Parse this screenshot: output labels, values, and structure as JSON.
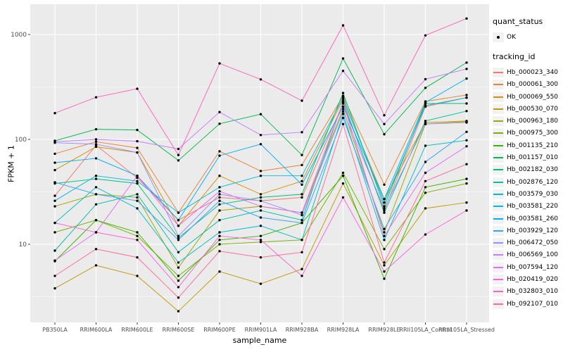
{
  "figure": {
    "background": "#FFFFFF",
    "panel_background": "#EBEBEB",
    "grid_color": "#FFFFFF",
    "tick_color": "#333333",
    "tick_text_color": "#4D4D4D",
    "point_color": "#000000"
  },
  "legend": {
    "quant_status_title": "quant_status",
    "quant_status_items": [
      {
        "label": "OK",
        "marker": "point"
      }
    ],
    "tracking_id_title": "tracking_id"
  },
  "chart_data": {
    "type": "line",
    "title": "",
    "xlabel": "sample_name",
    "ylabel": "FPKM + 1",
    "y_scale": "log10",
    "y_ticks": [
      10,
      100,
      1000
    ],
    "y_minor_ticks": [
      3.162,
      31.62,
      316.2
    ],
    "ylim": [
      1.8,
      1830
    ],
    "grid": true,
    "legend_position": "right",
    "marker": "black-point",
    "categories": [
      "PB350LA",
      "RRIM600LA",
      "RRIM600LE",
      "RRIM600SE",
      "RRIM600PE",
      "RRIM901LA",
      "RRIM928BA",
      "RRIM928LA",
      "RRIM928LE",
      "RRII105LA_Control",
      "RRII105LA_Stressed"
    ],
    "series": [
      {
        "name": "Hb_000023_340",
        "color": "#F8766D",
        "values": [
          29,
          88,
          43,
          17,
          28,
          26,
          28,
          220,
          21,
          205,
          250
        ]
      },
      {
        "name": "Hb_000061_300",
        "color": "#EA8331",
        "values": [
          73,
          95,
          83,
          20,
          77,
          50,
          57,
          260,
          37,
          230,
          265
        ]
      },
      {
        "name": "Hb_000069_550",
        "color": "#D89000",
        "values": [
          51,
          85,
          75,
          15,
          45,
          30,
          40,
          240,
          27,
          145,
          150
        ]
      },
      {
        "name": "Hb_000530_070",
        "color": "#C09B00",
        "values": [
          3.8,
          6.3,
          5,
          2.3,
          5.5,
          4.2,
          5.8,
          38,
          6.3,
          22,
          25
        ]
      },
      {
        "name": "Hb_000963_180",
        "color": "#A3A500",
        "values": [
          23,
          30,
          28,
          6,
          21,
          23,
          20,
          195,
          13,
          140,
          148
        ]
      },
      {
        "name": "Hb_000975_300",
        "color": "#7CAE00",
        "values": [
          13,
          17,
          12,
          5,
          10,
          10.5,
          11,
          48,
          9,
          31,
          38
        ]
      },
      {
        "name": "Hb_001135_210",
        "color": "#39B600",
        "values": [
          6.9,
          17,
          13,
          4.5,
          11,
          12,
          16,
          45,
          4.7,
          35,
          42
        ]
      },
      {
        "name": "Hb_001157_010",
        "color": "#00BB4E",
        "values": [
          97,
          125,
          123,
          63,
          141,
          174,
          71,
          590,
          112,
          310,
          540
        ]
      },
      {
        "name": "Hb_002182_030",
        "color": "#00BF7D",
        "values": [
          38,
          42,
          38,
          11.5,
          24,
          28,
          30,
          277,
          23,
          220,
          220
        ]
      },
      {
        "name": "Hb_002876_120",
        "color": "#00C1A3",
        "values": [
          8.7,
          24,
          30,
          8.4,
          17,
          21,
          17,
          230,
          20,
          150,
          186
        ]
      },
      {
        "name": "Hb_003579_030",
        "color": "#00BFC4",
        "values": [
          16,
          35,
          22,
          6.7,
          13,
          15,
          11,
          175,
          11,
          87,
          98
        ]
      },
      {
        "name": "Hb_003581_220",
        "color": "#00BAE0",
        "values": [
          26,
          45,
          40,
          20,
          35,
          45,
          45,
          250,
          25,
          210,
          250
        ]
      },
      {
        "name": "Hb_003581_260",
        "color": "#00B0F6",
        "values": [
          60,
          66,
          45,
          17,
          70,
          90,
          37,
          205,
          27,
          225,
          380
        ]
      },
      {
        "name": "Hb_003929_120",
        "color": "#35A2FF",
        "values": [
          39,
          30,
          26,
          11,
          26,
          18,
          16,
          160,
          14,
          61,
          118
        ]
      },
      {
        "name": "Hb_006472_050",
        "color": "#9590FF",
        "values": [
          93,
          90,
          75,
          12,
          30,
          26,
          19,
          185,
          22,
          140,
          145
        ]
      },
      {
        "name": "Hb_006569_100",
        "color": "#C77CFF",
        "values": [
          95,
          100,
          96,
          81,
          182,
          110,
          117,
          450,
          140,
          375,
          470
        ]
      },
      {
        "name": "Hb_007594_120",
        "color": "#E76BF3",
        "values": [
          7,
          13,
          45,
          15,
          32,
          23,
          20,
          225,
          12,
          48,
          86
        ]
      },
      {
        "name": "Hb_020419_020",
        "color": "#FA62DB",
        "values": [
          16,
          13,
          11,
          3.9,
          12,
          11,
          5,
          28,
          5.5,
          12.4,
          21
        ]
      },
      {
        "name": "Hb_032803_010",
        "color": "#FF62BC",
        "values": [
          178,
          252,
          304,
          71,
          530,
          373,
          234,
          1220,
          170,
          980,
          1420
        ]
      },
      {
        "name": "Hb_092107_010",
        "color": "#FF6A98",
        "values": [
          5,
          9,
          7.5,
          3.1,
          8.6,
          7.5,
          8.4,
          140,
          6.7,
          40,
          58
        ]
      }
    ]
  }
}
